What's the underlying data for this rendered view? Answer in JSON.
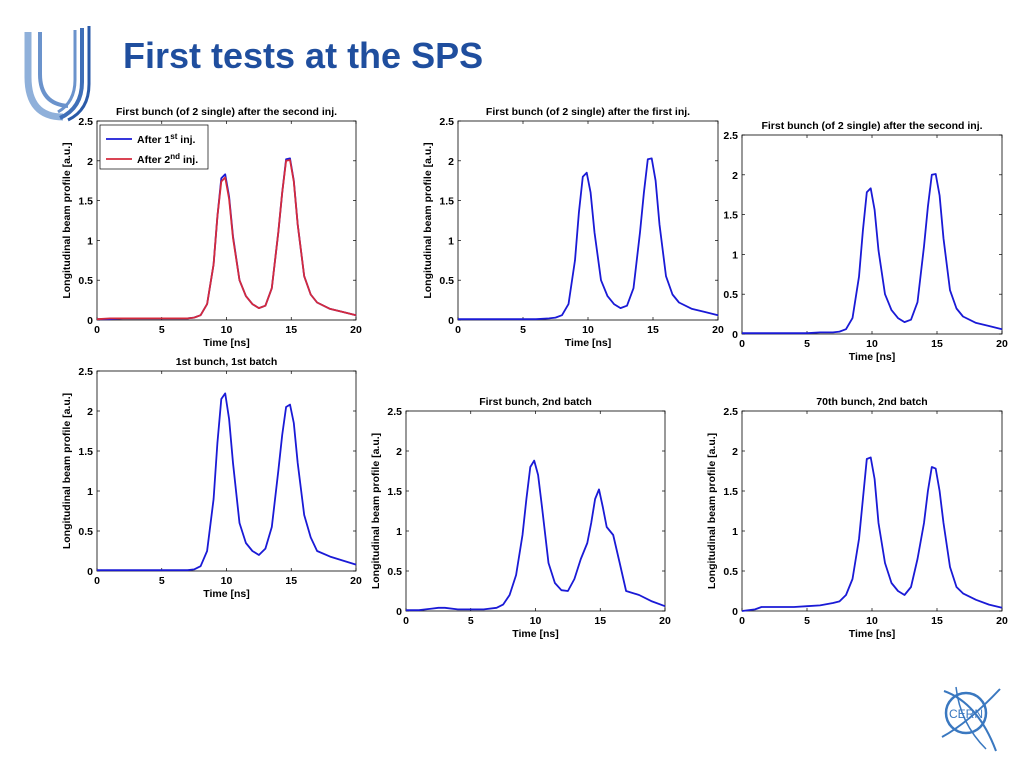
{
  "slide": {
    "title": "First tests at the SPS",
    "logo_text": "CERN",
    "colors": {
      "title": "#1f4e9e",
      "series_blue": "#1a1ad6",
      "series_red": "#d42a3c"
    }
  },
  "chart_data": [
    {
      "type": "line",
      "title": "First bunch (of 2 single) after the second inj.",
      "xlabel": "Time [ns]",
      "ylabel": "Longitudinal beam profile [a.u.]",
      "xlim": [
        0,
        20
      ],
      "ylim": [
        0,
        2.5
      ],
      "xticks": [
        "0",
        "5",
        "10",
        "15",
        "20"
      ],
      "yticks": [
        "0",
        "0.5",
        "1",
        "1.5",
        "2",
        "2.5"
      ],
      "legend": {
        "placement": "top-left",
        "entries": [
          {
            "prefix": "After 1",
            "sup": "st",
            "suffix": " inj."
          },
          {
            "prefix": "After 2",
            "sup": "nd",
            "suffix": " inj."
          }
        ]
      },
      "series": [
        {
          "name": "After 1st inj.",
          "color": "#1a1ad6",
          "x": [
            0,
            1,
            2,
            3,
            4,
            5,
            6,
            7,
            7.5,
            8,
            8.5,
            9,
            9.3,
            9.6,
            9.9,
            10.2,
            10.5,
            11,
            11.5,
            12,
            12.5,
            13,
            13.5,
            14,
            14.3,
            14.6,
            14.9,
            15.2,
            15.5,
            16,
            16.5,
            17,
            18,
            19,
            20
          ],
          "y": [
            0.01,
            0.01,
            0.02,
            0.02,
            0.02,
            0.02,
            0.02,
            0.02,
            0.03,
            0.06,
            0.2,
            0.7,
            1.3,
            1.78,
            1.83,
            1.55,
            1.05,
            0.5,
            0.3,
            0.2,
            0.15,
            0.18,
            0.4,
            1.1,
            1.6,
            2.02,
            2.03,
            1.75,
            1.2,
            0.55,
            0.32,
            0.22,
            0.14,
            0.1,
            0.06
          ]
        },
        {
          "name": "After 2nd inj.",
          "color": "#d42a3c",
          "x": [
            0,
            1,
            2,
            3,
            4,
            5,
            6,
            7,
            7.5,
            8,
            8.5,
            9,
            9.3,
            9.6,
            9.9,
            10.2,
            10.5,
            11,
            11.5,
            12,
            12.5,
            13,
            13.5,
            14,
            14.3,
            14.6,
            14.9,
            15.2,
            15.5,
            16,
            16.5,
            17,
            18,
            19,
            20
          ],
          "y": [
            0.01,
            0.02,
            0.02,
            0.02,
            0.02,
            0.02,
            0.02,
            0.02,
            0.03,
            0.06,
            0.2,
            0.7,
            1.3,
            1.74,
            1.79,
            1.52,
            1.03,
            0.5,
            0.3,
            0.2,
            0.15,
            0.18,
            0.4,
            1.1,
            1.6,
            2.0,
            2.01,
            1.74,
            1.2,
            0.55,
            0.32,
            0.22,
            0.14,
            0.1,
            0.06
          ]
        }
      ]
    },
    {
      "type": "line",
      "title": "First bunch (of 2 single) after the first inj.",
      "xlabel": "Time [ns]",
      "ylabel": "Longitudinal beam profile [a.u.]",
      "xlim": [
        0,
        20
      ],
      "ylim": [
        0,
        2.5
      ],
      "xticks": [
        "0",
        "5",
        "10",
        "15",
        "20"
      ],
      "yticks": [
        "0",
        "0.5",
        "1",
        "1.5",
        "2",
        "2.5"
      ],
      "series": [
        {
          "color": "#1a1ad6",
          "x": [
            0,
            1,
            2,
            3,
            4,
            5,
            6,
            7,
            7.5,
            8,
            8.5,
            9,
            9.3,
            9.6,
            9.9,
            10.2,
            10.5,
            11,
            11.5,
            12,
            12.5,
            13,
            13.5,
            14,
            14.3,
            14.6,
            14.9,
            15.2,
            15.5,
            16,
            16.5,
            17,
            18,
            19,
            20
          ],
          "y": [
            0.01,
            0.01,
            0.01,
            0.01,
            0.01,
            0.01,
            0.01,
            0.02,
            0.03,
            0.06,
            0.2,
            0.75,
            1.35,
            1.8,
            1.85,
            1.6,
            1.1,
            0.5,
            0.3,
            0.2,
            0.15,
            0.18,
            0.4,
            1.1,
            1.6,
            2.02,
            2.03,
            1.75,
            1.2,
            0.55,
            0.32,
            0.22,
            0.14,
            0.1,
            0.06
          ]
        }
      ]
    },
    {
      "type": "line",
      "title": "First bunch (of 2 single) after the second inj.",
      "xlabel": "Time [ns]",
      "ylabel": "",
      "xlim": [
        0,
        20
      ],
      "ylim": [
        0,
        2.5
      ],
      "xticks": [
        "0",
        "5",
        "10",
        "15",
        "20"
      ],
      "yticks": [
        "0",
        "0.5",
        "1",
        "1.5",
        "2",
        "2.5"
      ],
      "series": [
        {
          "color": "#1a1ad6",
          "x": [
            0,
            1,
            2,
            3,
            4,
            5,
            6,
            7,
            7.5,
            8,
            8.5,
            9,
            9.3,
            9.6,
            9.9,
            10.2,
            10.5,
            11,
            11.5,
            12,
            12.5,
            13,
            13.5,
            14,
            14.3,
            14.6,
            14.9,
            15.2,
            15.5,
            16,
            16.5,
            17,
            18,
            19,
            20
          ],
          "y": [
            0.01,
            0.01,
            0.01,
            0.01,
            0.01,
            0.01,
            0.02,
            0.02,
            0.03,
            0.06,
            0.2,
            0.72,
            1.3,
            1.78,
            1.83,
            1.56,
            1.05,
            0.5,
            0.3,
            0.2,
            0.15,
            0.18,
            0.4,
            1.1,
            1.6,
            2.0,
            2.01,
            1.74,
            1.2,
            0.55,
            0.32,
            0.22,
            0.14,
            0.1,
            0.06
          ]
        }
      ]
    },
    {
      "type": "line",
      "title": "1st bunch, 1st batch",
      "xlabel": "Time [ns]",
      "ylabel": "Longitudinal beam profile [a.u.]",
      "xlim": [
        0,
        20
      ],
      "ylim": [
        0,
        2.5
      ],
      "xticks": [
        "0",
        "5",
        "10",
        "15",
        "20"
      ],
      "yticks": [
        "0",
        "0.5",
        "1",
        "1.5",
        "2",
        "2.5"
      ],
      "series": [
        {
          "color": "#1a1ad6",
          "x": [
            0,
            1,
            2,
            3,
            4,
            5,
            6,
            7,
            7.5,
            8,
            8.5,
            9,
            9.3,
            9.6,
            9.9,
            10.2,
            10.5,
            11,
            11.5,
            12,
            12.5,
            13,
            13.5,
            14,
            14.3,
            14.6,
            14.9,
            15.2,
            15.5,
            16,
            16.5,
            17,
            18,
            19,
            20
          ],
          "y": [
            0.01,
            0.01,
            0.01,
            0.01,
            0.01,
            0.01,
            0.01,
            0.01,
            0.02,
            0.06,
            0.25,
            0.9,
            1.6,
            2.15,
            2.22,
            1.9,
            1.35,
            0.6,
            0.35,
            0.25,
            0.2,
            0.28,
            0.55,
            1.25,
            1.7,
            2.05,
            2.08,
            1.85,
            1.35,
            0.7,
            0.42,
            0.25,
            0.18,
            0.13,
            0.08
          ]
        }
      ]
    },
    {
      "type": "line",
      "title": "First bunch, 2nd batch",
      "xlabel": "Time [ns]",
      "ylabel": "Longitudinal beam profile [a.u.]",
      "xlim": [
        0,
        20
      ],
      "ylim": [
        0,
        2.5
      ],
      "xticks": [
        "0",
        "5",
        "10",
        "15",
        "20"
      ],
      "yticks": [
        "0",
        "0.5",
        "1",
        "1.5",
        "2",
        "2.5"
      ],
      "series": [
        {
          "color": "#1a1ad6",
          "x": [
            0,
            1,
            1.5,
            2,
            2.5,
            3,
            4,
            5,
            6,
            7,
            7.5,
            8,
            8.5,
            9,
            9.3,
            9.6,
            9.9,
            10.2,
            10.5,
            11,
            11.5,
            12,
            12.5,
            13,
            13.5,
            14,
            14.3,
            14.6,
            14.9,
            15.2,
            15.5,
            16,
            16.5,
            17,
            18,
            19,
            20
          ],
          "y": [
            0.01,
            0.01,
            0.02,
            0.03,
            0.04,
            0.04,
            0.02,
            0.02,
            0.02,
            0.04,
            0.08,
            0.2,
            0.45,
            0.95,
            1.4,
            1.8,
            1.88,
            1.7,
            1.3,
            0.6,
            0.35,
            0.26,
            0.25,
            0.4,
            0.65,
            0.85,
            1.1,
            1.4,
            1.52,
            1.3,
            1.05,
            0.95,
            0.6,
            0.25,
            0.2,
            0.12,
            0.06
          ]
        }
      ]
    },
    {
      "type": "line",
      "title": "70th bunch, 2nd batch",
      "xlabel": "Time [ns]",
      "ylabel": "Longitudinal beam profile [a.u.]",
      "xlim": [
        0,
        20
      ],
      "ylim": [
        0,
        2.5
      ],
      "xticks": [
        "0",
        "5",
        "10",
        "15",
        "20"
      ],
      "yticks": [
        "0",
        "0.5",
        "1",
        "1.5",
        "2",
        "2.5"
      ],
      "series": [
        {
          "color": "#1a1ad6",
          "x": [
            0,
            1,
            1.5,
            2,
            3,
            4,
            5,
            6,
            7,
            7.5,
            8,
            8.5,
            9,
            9.3,
            9.6,
            9.9,
            10.2,
            10.5,
            11,
            11.5,
            12,
            12.5,
            13,
            13.5,
            14,
            14.3,
            14.6,
            14.9,
            15.2,
            15.5,
            16,
            16.5,
            17,
            18,
            19,
            20
          ],
          "y": [
            0.0,
            0.02,
            0.05,
            0.05,
            0.05,
            0.05,
            0.06,
            0.07,
            0.1,
            0.12,
            0.2,
            0.4,
            0.9,
            1.4,
            1.9,
            1.92,
            1.65,
            1.1,
            0.6,
            0.35,
            0.25,
            0.2,
            0.3,
            0.65,
            1.1,
            1.5,
            1.8,
            1.78,
            1.5,
            1.1,
            0.55,
            0.3,
            0.22,
            0.14,
            0.08,
            0.04
          ]
        }
      ]
    }
  ]
}
